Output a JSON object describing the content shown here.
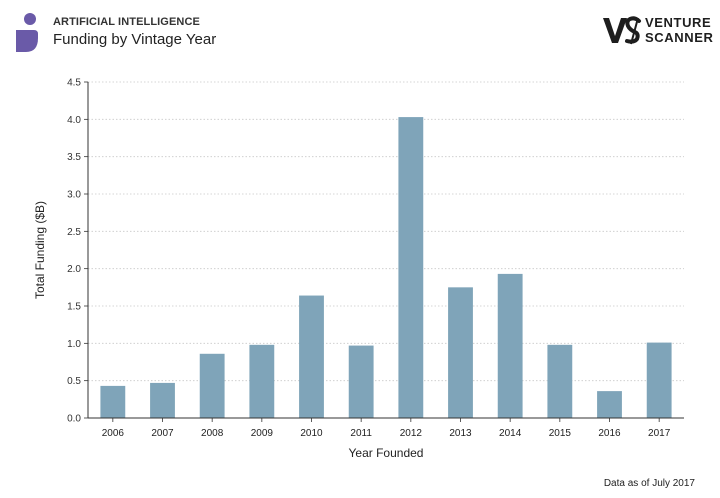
{
  "header": {
    "category": "ARTIFICIAL INTELLIGENCE",
    "subtitle": "Funding by Vintage Year",
    "brand_line1": "VENTURE",
    "brand_line2": "SCANNER",
    "logo_icon": "ai-person-icon",
    "brand_icon": "venture-scanner-vs-logo",
    "accent_color": "#6a5aa8"
  },
  "footnote": "Data as of July 2017",
  "chart_data": {
    "type": "bar",
    "categories": [
      "2006",
      "2007",
      "2008",
      "2009",
      "2010",
      "2011",
      "2012",
      "2013",
      "2014",
      "2015",
      "2016",
      "2017"
    ],
    "values": [
      0.43,
      0.47,
      0.86,
      0.98,
      1.64,
      0.97,
      4.03,
      1.75,
      1.93,
      0.98,
      0.36,
      1.01
    ],
    "xlabel": "Year Founded",
    "ylabel": "Total Funding ($B)",
    "ylim": [
      0,
      4.5
    ],
    "yticks": [
      "0.0",
      "0.5",
      "1.0",
      "1.5",
      "2.0",
      "2.5",
      "3.0",
      "3.5",
      "4.0",
      "4.5"
    ],
    "grid": true,
    "bar_color": "#7fa4b9"
  }
}
